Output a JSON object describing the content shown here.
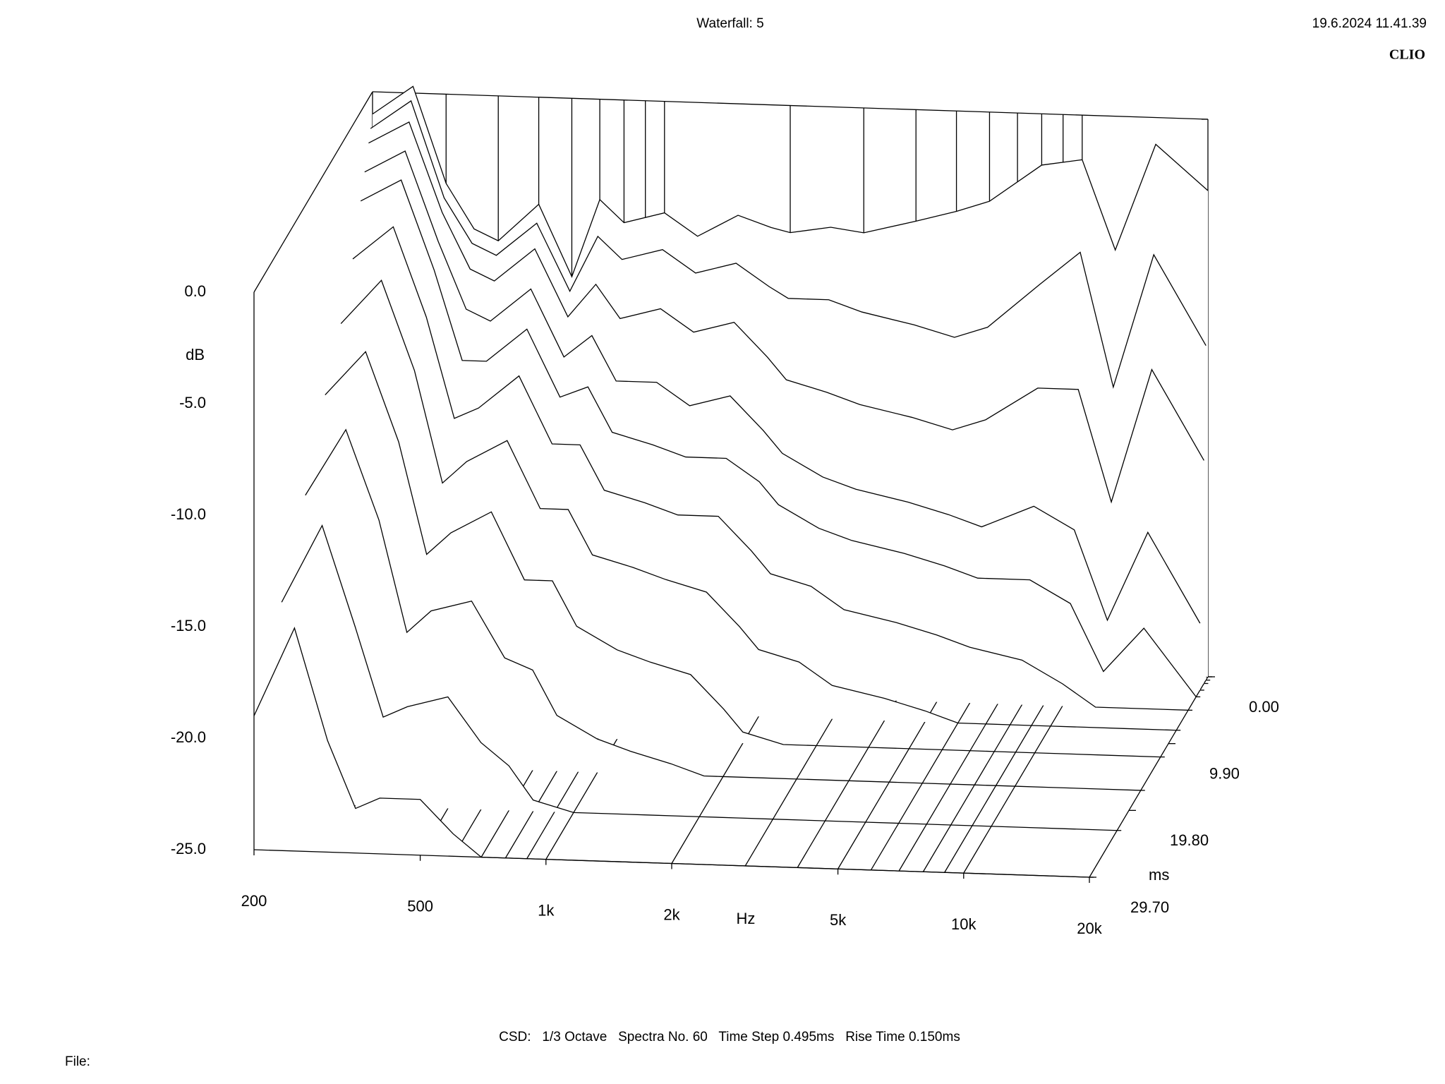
{
  "chart_data": {
    "type": "waterfall",
    "title": "Waterfall: 5",
    "timestamp": "19.6.2024 11.41.39",
    "brand": "CLIO",
    "caption": "CSD:   1/3 Octave   Spectra No. 60   Time Step 0.495ms   Rise Time 0.150ms",
    "file_label": "File:",
    "xlabel": "Hz",
    "ylabel": "dB",
    "zlabel": "ms",
    "xscale": "log",
    "xlim": [
      200,
      20000
    ],
    "xticks": [
      200,
      500,
      {
        "value": 1000,
        "label": "1k"
      },
      {
        "value": 2000,
        "label": "2k"
      },
      {
        "value": 5000,
        "label": "5k"
      },
      {
        "value": 10000,
        "label": "10k"
      },
      {
        "value": 20000,
        "label": "20k"
      }
    ],
    "ylim": [
      -25,
      0
    ],
    "yticks": [
      {
        "value": 0,
        "label": "0.0"
      },
      {
        "value": -5,
        "label": "-5.0"
      },
      {
        "value": -10,
        "label": "-10.0"
      },
      {
        "value": -15,
        "label": "-15.0"
      },
      {
        "value": -20,
        "label": "-20.0"
      },
      {
        "value": -25,
        "label": "-25.0"
      }
    ],
    "zlim": [
      29.7,
      0
    ],
    "zticks": [
      {
        "value": 0,
        "label": "0.00"
      },
      {
        "value": 9.9,
        "label": "9.90"
      },
      {
        "value": 19.8,
        "label": "19.80"
      },
      {
        "value": 29.7,
        "label": "29.70"
      }
    ],
    "grid": true,
    "color": "#000000",
    "x": [
      200,
      250,
      300,
      350,
      400,
      500,
      600,
      700,
      800,
      1000,
      1200,
      1500,
      1800,
      2000,
      2500,
      3000,
      4000,
      5000,
      6000,
      8000,
      10000,
      12000,
      15000,
      20000
    ],
    "series": [
      {
        "time": 0,
        "values": [
          -1.0,
          0.3,
          -4.0,
          -6.0,
          -6.5,
          -4.8,
          -8.0,
          -4.5,
          -5.5,
          -5.0,
          -6.0,
          -5.0,
          -5.5,
          -5.7,
          -5.4,
          -5.6,
          -5.0,
          -4.5,
          -4.0,
          -2.3,
          -2.0,
          -6.0,
          -1.2,
          -3.2
        ]
      },
      {
        "time": 0.495,
        "values": [
          -1.5,
          -0.2,
          -4.5,
          -6.5,
          -7.0,
          -5.5,
          -8.5,
          -6.0,
          -7.0,
          -6.5,
          -7.5,
          -7.0,
          -8.0,
          -8.5,
          -8.5,
          -9.0,
          -9.5,
          -10.0,
          -9.5,
          -7.5,
          -6.0,
          -12.0,
          -6.0,
          -10.0
        ]
      },
      {
        "time": 0.99,
        "values": [
          -2,
          -1,
          -5,
          -7.5,
          -8,
          -6.5,
          -9.5,
          -8,
          -9.5,
          -9,
          -10,
          -9.5,
          -11,
          -12,
          -12.5,
          -13,
          -13.5,
          -14,
          -13.5,
          -12,
          -12,
          -17,
          -11,
          -15
        ]
      },
      {
        "time": 1.98,
        "values": [
          -3,
          -2,
          -6,
          -9,
          -9.5,
          -8,
          -11,
          -10,
          -12,
          -12,
          -13,
          -12.5,
          -14,
          -15,
          -16,
          -16.5,
          -17,
          -17.5,
          -18,
          -17,
          -18,
          -22,
          -18,
          -22
        ]
      },
      {
        "time": 2.97,
        "values": [
          -4,
          -3,
          -7,
          -11,
          -11,
          -9.5,
          -12.5,
          -12,
          -14,
          -14.5,
          -15,
          -15,
          -16,
          -17,
          -18,
          -18.5,
          -19,
          -19.5,
          -20,
          -20,
          -21,
          -24,
          -22,
          -25
        ]
      },
      {
        "time": 4.95,
        "values": [
          -6,
          -4.5,
          -8.5,
          -13,
          -12.5,
          -11,
          -14,
          -14,
          -16,
          -16.5,
          -17,
          -17,
          -18.5,
          -19.5,
          -20,
          -21,
          -21.5,
          -22,
          -22.5,
          -23,
          -24,
          -25,
          -25,
          -25
        ]
      },
      {
        "time": 7.92,
        "values": [
          -8,
          -6,
          -10,
          -15,
          -14,
          -13,
          -16,
          -16,
          -18,
          -18.5,
          -19,
          -19.5,
          -21,
          -22,
          -22.5,
          -23.5,
          -24,
          -24.5,
          -25,
          -25,
          -25,
          -25,
          -25,
          -25
        ]
      },
      {
        "time": 11.88,
        "values": [
          -10,
          -8,
          -12,
          -17,
          -16,
          -15,
          -18,
          -18,
          -20,
          -21,
          -21.5,
          -22,
          -23.5,
          -24.5,
          -25,
          -25,
          -25,
          -25,
          -25,
          -25,
          -25,
          -25,
          -25,
          -25
        ]
      },
      {
        "time": 16.83,
        "values": [
          -13,
          -10,
          -14,
          -19,
          -18,
          -17.5,
          -20,
          -20.5,
          -22.5,
          -23.5,
          -24,
          -24.5,
          -25,
          -25,
          -25,
          -25,
          -25,
          -25,
          -25,
          -25,
          -25,
          -25,
          -25,
          -25
        ]
      },
      {
        "time": 22.77,
        "values": [
          -16,
          -12.5,
          -17,
          -21,
          -20.5,
          -20,
          -22,
          -23,
          -24.5,
          -25,
          -25,
          -25,
          -25,
          -25,
          -25,
          -25,
          -25,
          -25,
          -25,
          -25,
          -25,
          -25,
          -25,
          -25
        ]
      },
      {
        "time": 29.7,
        "values": [
          -19,
          -15,
          -20,
          -23,
          -22.5,
          -22.5,
          -24,
          -25,
          -25,
          -25,
          -25,
          -25,
          -25,
          -25,
          -25,
          -25,
          -25,
          -25,
          -25,
          -25,
          -25,
          -25,
          -25,
          -25
        ]
      }
    ]
  }
}
